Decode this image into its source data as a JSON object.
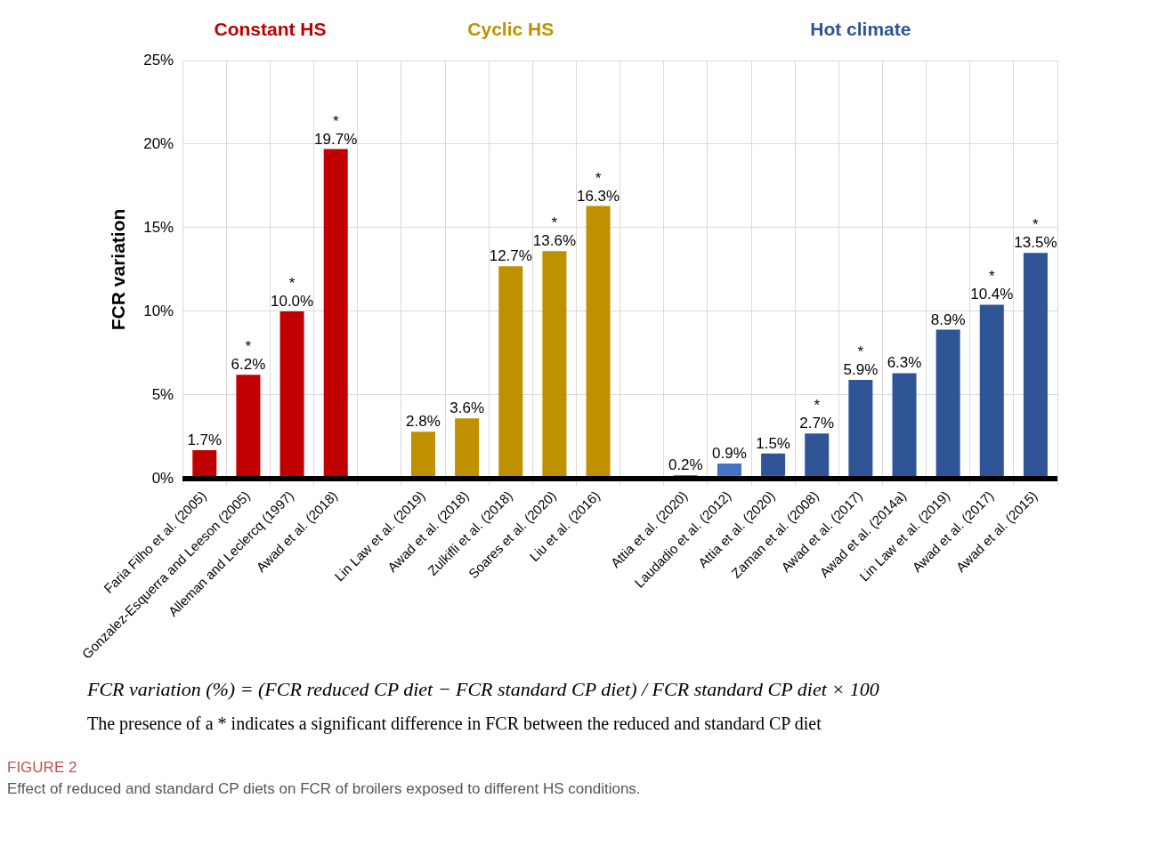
{
  "chart_data": {
    "type": "bar",
    "title": "FIGURE 2",
    "subtitle": "Effect of reduced and standard CP diets on FCR of broilers exposed to different HS conditions.",
    "ylabel": "FCR variation",
    "categories": [
      "Faria Filho et al. (2005)",
      "Gonzalez-Esquerra and Leeson (2005)",
      "Alleman and Leclercq (1997)",
      "Awad et al. (2018)",
      null,
      "Lin Law et al. (2019)",
      "Awad et al. (2018)",
      "Zulkifli et al. (2018)",
      "Soares et al. (2020)",
      "Liu et al. (2016)",
      null,
      "Attia et al. (2020)",
      "Laudadio et al. (2012)",
      "Attia et al. (2020)",
      "Zaman et al. (2008)",
      "Awad et al. (2017)",
      "Awad et al. (2014a)",
      "Lin Law et al. (2019)",
      "Awad et al. (2017)",
      "Awad et al. (2015)"
    ],
    "values": [
      1.7,
      6.2,
      10.0,
      19.7,
      null,
      2.8,
      3.6,
      12.7,
      13.6,
      16.3,
      null,
      0.2,
      0.9,
      1.5,
      2.7,
      5.9,
      6.3,
      8.9,
      10.4,
      13.5
    ],
    "colors": [
      "#c00000",
      "#c00000",
      "#c00000",
      "#c00000",
      null,
      "#bf9000",
      "#bf9000",
      "#bf9000",
      "#bf9000",
      "#bf9000",
      null,
      "#2f5597",
      "#4472c4",
      "#2f5597",
      "#2f5597",
      "#2f5597",
      "#2f5597",
      "#2f5597",
      "#2f5597",
      "#2f5597"
    ],
    "value_labels": [
      "1.7%",
      "*\n6.2%",
      "*\n10.0%",
      "*\n19.7%",
      null,
      "2.8%",
      "3.6%",
      "12.7%",
      "*\n13.6%",
      "*\n16.3%",
      null,
      "0.2%",
      "0.9%",
      "1.5%",
      "*\n2.7%",
      "*\n5.9%",
      "6.3%",
      "8.9%",
      "*\n10.4%",
      "*\n13.5%"
    ],
    "ylim": [
      0,
      25
    ],
    "yticks": [
      {
        "value": 0,
        "label": "0%"
      },
      {
        "value": 5,
        "label": "5%"
      },
      {
        "value": 10,
        "label": "10%"
      },
      {
        "value": 15,
        "label": "15%"
      },
      {
        "value": 20,
        "label": "20%"
      },
      {
        "value": 25,
        "label": "25%"
      }
    ],
    "grid": true,
    "annotations": [
      "Constant HS",
      "Cyclic HS",
      "Hot climate",
      "FCR variation (%) = (FCR reduced CP diet − FCR standard CP diet) / FCR standard CP diet × 100",
      "The presence of a * indicates a significant difference in FCR between the reduced and standard CP diet"
    ]
  }
}
